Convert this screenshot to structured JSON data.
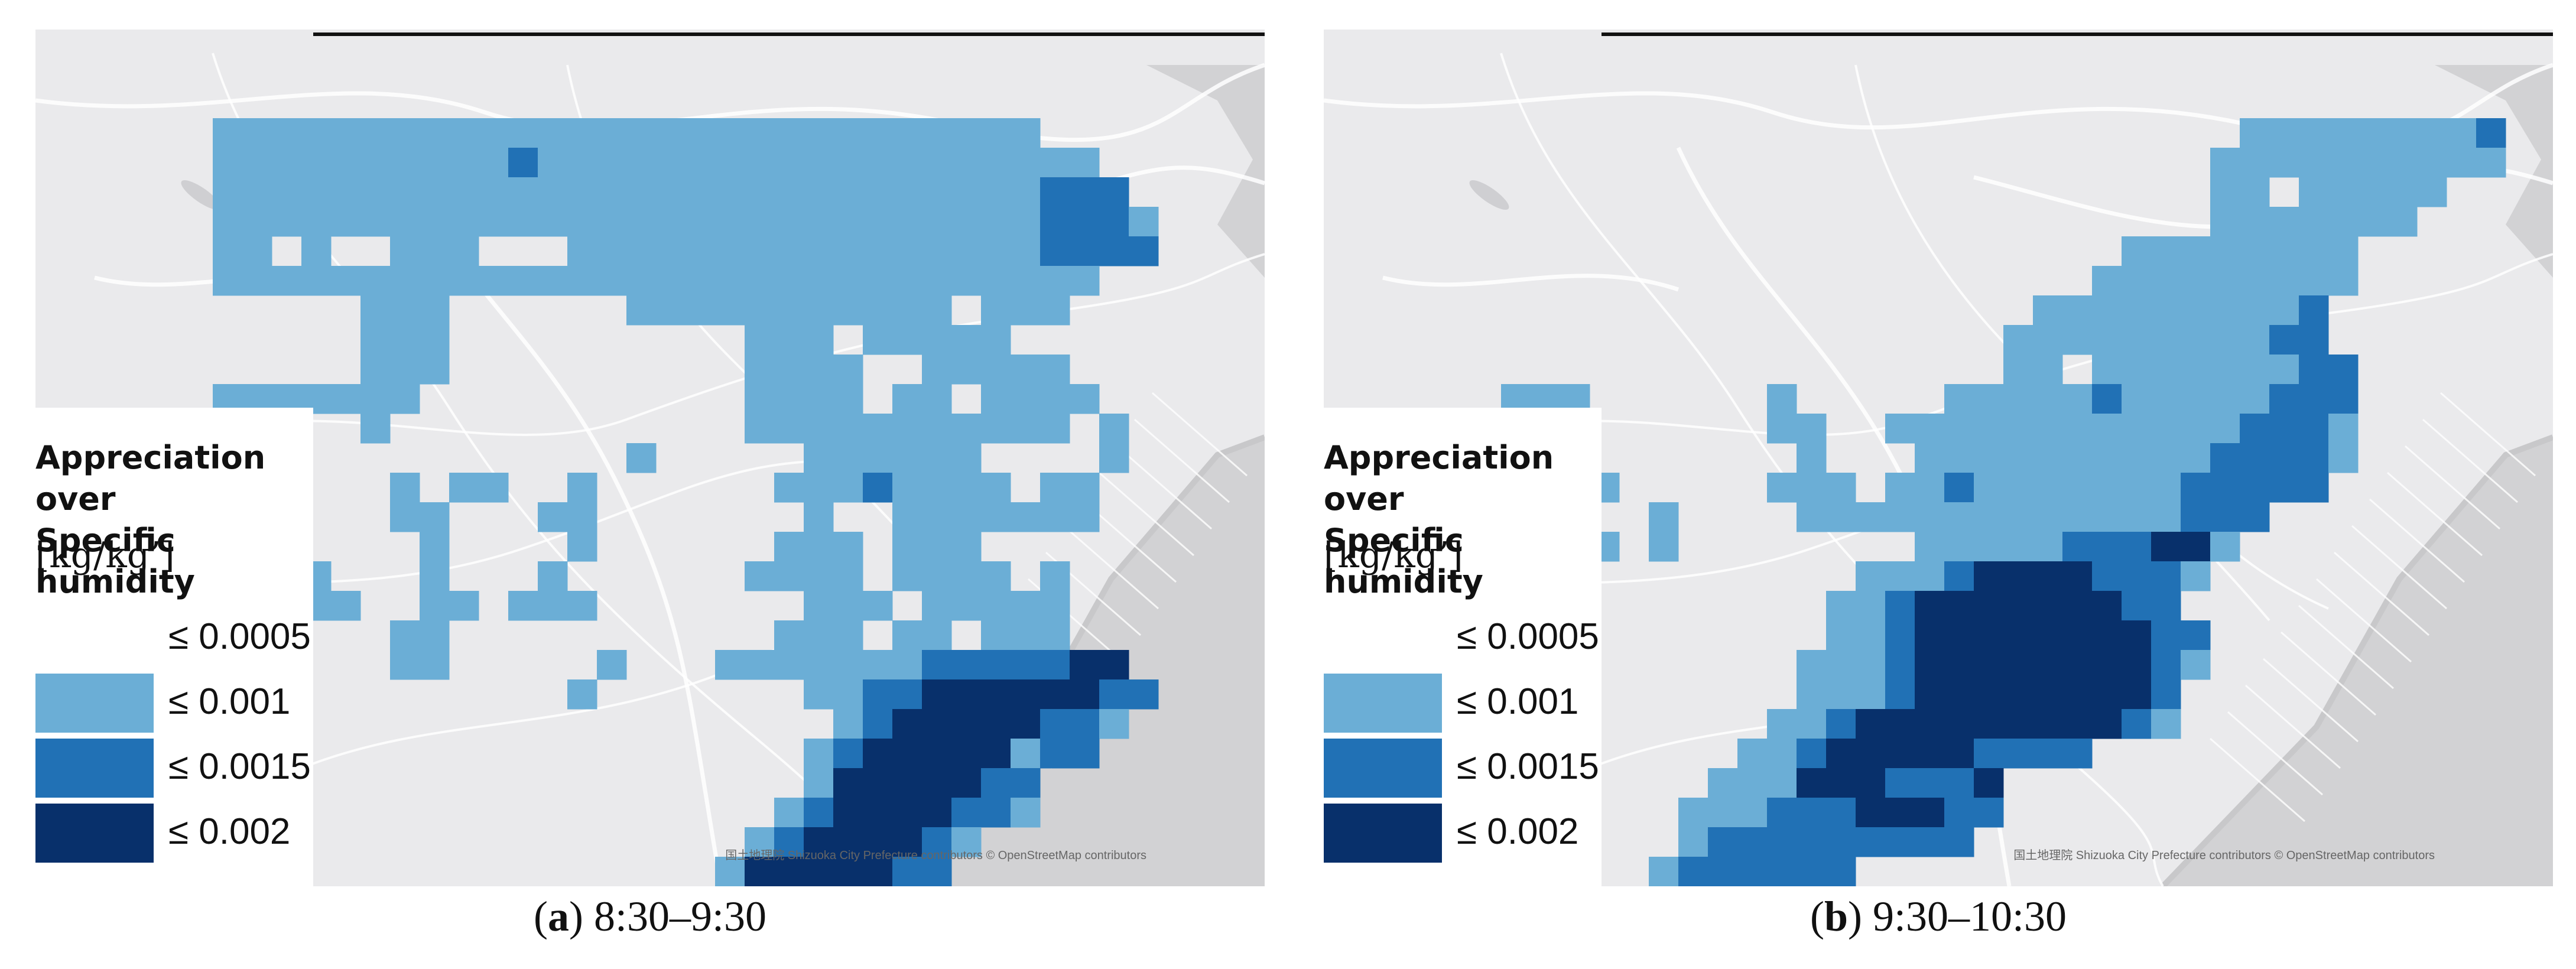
{
  "legend": {
    "title": "Appreciation over\nSpecific humidity",
    "unit": "[kg/kg’]",
    "classes": [
      {
        "label": "≤ 0.0005",
        "color": "#ffffff"
      },
      {
        "label": "≤ 0.001",
        "color": "#6baed6"
      },
      {
        "label": "≤ 0.0015",
        "color": "#2171b5"
      },
      {
        "label": "≤ 0.002",
        "color": "#08306b"
      }
    ]
  },
  "attribution": "国土地理院 Shizuoka City Prefecture contributors © OpenStreetMap contributors",
  "colors": {
    "map_base": "#eaeaec",
    "roads": "#ffffff",
    "sea": "#d2d2d4",
    "coastline": "#c8c8ca"
  },
  "panels": [
    {
      "id": "a",
      "letter": "a",
      "time": " 8:30–9:30"
    },
    {
      "id": "b",
      "letter": "b",
      "time": " 9:30–10:30"
    }
  ]
}
